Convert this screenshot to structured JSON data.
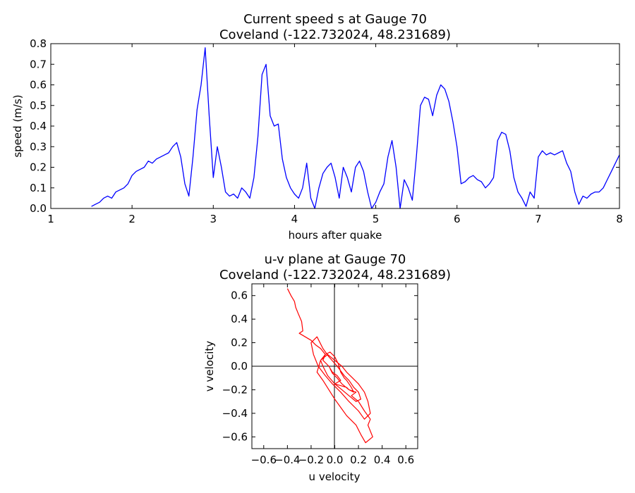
{
  "chart_data": [
    {
      "type": "line",
      "title": "Current speed s at Gauge 70",
      "subtitle": "Coveland  (-122.732024, 48.231689)",
      "xlabel": "hours after quake",
      "ylabel": "speed (m/s)",
      "xlim": [
        1,
        8
      ],
      "ylim": [
        0.0,
        0.8
      ],
      "xticks": [
        "1",
        "2",
        "3",
        "4",
        "5",
        "6",
        "7",
        "8"
      ],
      "yticks": [
        "0.0",
        "0.1",
        "0.2",
        "0.3",
        "0.4",
        "0.5",
        "0.6",
        "0.7",
        "0.8"
      ],
      "grid": false,
      "color": "#0000ff",
      "series": [
        {
          "x": [
            1.5,
            1.55,
            1.6,
            1.65,
            1.7,
            1.75,
            1.8,
            1.85,
            1.9,
            1.95,
            2.0,
            2.05,
            2.1,
            2.15,
            2.2,
            2.25,
            2.3,
            2.35,
            2.4,
            2.45,
            2.5,
            2.55,
            2.6,
            2.65,
            2.7,
            2.75,
            2.8,
            2.85,
            2.9,
            2.95,
            3.0,
            3.05,
            3.1,
            3.15,
            3.2,
            3.25,
            3.3,
            3.35,
            3.4,
            3.45,
            3.5,
            3.55,
            3.6,
            3.65,
            3.7,
            3.75,
            3.8,
            3.85,
            3.9,
            3.95,
            4.0,
            4.05,
            4.1,
            4.15,
            4.2,
            4.25,
            4.3,
            4.35,
            4.4,
            4.45,
            4.5,
            4.55,
            4.6,
            4.65,
            4.7,
            4.75,
            4.8,
            4.85,
            4.9,
            4.95,
            5.0,
            5.05,
            5.1,
            5.15,
            5.2,
            5.25,
            5.3,
            5.35,
            5.4,
            5.45,
            5.5,
            5.55,
            5.6,
            5.65,
            5.7,
            5.75,
            5.8,
            5.85,
            5.9,
            5.95,
            6.0,
            6.05,
            6.1,
            6.15,
            6.2,
            6.25,
            6.3,
            6.35,
            6.4,
            6.45,
            6.5,
            6.55,
            6.6,
            6.65,
            6.7,
            6.75,
            6.8,
            6.85,
            6.9,
            6.95,
            7.0,
            7.05,
            7.1,
            7.15,
            7.2,
            7.25,
            7.3,
            7.35,
            7.4,
            7.45,
            7.5,
            7.55,
            7.6,
            7.65,
            7.7,
            7.75,
            7.8,
            7.85,
            7.9,
            7.95,
            8.0
          ],
          "values": [
            0.01,
            0.02,
            0.03,
            0.05,
            0.06,
            0.05,
            0.08,
            0.09,
            0.1,
            0.12,
            0.16,
            0.18,
            0.19,
            0.2,
            0.23,
            0.22,
            0.24,
            0.25,
            0.26,
            0.27,
            0.3,
            0.32,
            0.25,
            0.12,
            0.06,
            0.25,
            0.48,
            0.6,
            0.78,
            0.45,
            0.15,
            0.3,
            0.2,
            0.08,
            0.06,
            0.07,
            0.05,
            0.1,
            0.08,
            0.05,
            0.15,
            0.35,
            0.65,
            0.7,
            0.45,
            0.4,
            0.41,
            0.24,
            0.15,
            0.1,
            0.07,
            0.05,
            0.1,
            0.22,
            0.05,
            0.0,
            0.1,
            0.17,
            0.2,
            0.22,
            0.15,
            0.05,
            0.2,
            0.15,
            0.08,
            0.2,
            0.23,
            0.18,
            0.08,
            0.0,
            0.03,
            0.08,
            0.12,
            0.25,
            0.33,
            0.2,
            0.0,
            0.14,
            0.1,
            0.04,
            0.25,
            0.5,
            0.54,
            0.53,
            0.45,
            0.55,
            0.6,
            0.58,
            0.52,
            0.42,
            0.3,
            0.12,
            0.13,
            0.15,
            0.16,
            0.14,
            0.13,
            0.1,
            0.12,
            0.15,
            0.33,
            0.37,
            0.36,
            0.28,
            0.15,
            0.08,
            0.05,
            0.01,
            0.08,
            0.05,
            0.25,
            0.28,
            0.26,
            0.27,
            0.26,
            0.27,
            0.28,
            0.22,
            0.18,
            0.08,
            0.02,
            0.06,
            0.05,
            0.07,
            0.08,
            0.08,
            0.1,
            0.14,
            0.18,
            0.22,
            0.26
          ]
        }
      ]
    },
    {
      "type": "line",
      "title": "u-v plane at Gauge 70",
      "subtitle": "Coveland  (-122.732024, 48.231689)",
      "xlabel": "u velocity",
      "ylabel": "v velocity",
      "xlim": [
        -0.7,
        0.7
      ],
      "ylim": [
        -0.7,
        0.7
      ],
      "xticks": [
        "−0.6",
        "−0.4",
        "−0.2",
        "0.0",
        "0.2",
        "0.4",
        "0.6"
      ],
      "yticks": [
        "−0.6",
        "−0.4",
        "−0.2",
        "0.0",
        "0.2",
        "0.4",
        "0.6"
      ],
      "grid": false,
      "color": "#ff0000",
      "series": [
        {
          "u": [
            -0.4,
            -0.37,
            -0.34,
            -0.33,
            -0.31,
            -0.28,
            -0.27,
            -0.3,
            -0.25,
            -0.2,
            -0.16,
            -0.12,
            -0.08,
            -0.1,
            -0.05,
            -0.02,
            0.02,
            0.05,
            0.0,
            0.1,
            0.12,
            0.18,
            0.14,
            0.2,
            0.25,
            0.3,
            0.28,
            0.32,
            0.26,
            0.22,
            0.18,
            0.1,
            0.05,
            0.0,
            -0.05,
            -0.1,
            -0.15,
            -0.12,
            -0.06,
            0.0,
            0.06,
            0.1,
            0.15,
            0.2,
            0.25,
            0.28,
            0.3,
            0.25,
            0.2,
            0.12,
            0.05,
            -0.02,
            -0.08,
            -0.14,
            -0.18,
            -0.2,
            -0.15,
            -0.1,
            -0.05,
            0.02,
            0.08,
            0.12,
            0.16,
            0.2,
            0.22,
            0.18,
            0.12,
            0.06,
            0.0,
            -0.06,
            -0.1,
            -0.12,
            -0.08,
            -0.04,
            0.0,
            0.03,
            0.05,
            0.08,
            0.1,
            0.14,
            0.16,
            0.12,
            0.06,
            0.02,
            -0.02,
            -0.04
          ],
          "v": [
            0.66,
            0.6,
            0.55,
            0.5,
            0.45,
            0.38,
            0.3,
            0.28,
            0.25,
            0.22,
            0.18,
            0.15,
            0.1,
            0.05,
            0.0,
            -0.05,
            -0.08,
            -0.12,
            -0.15,
            -0.18,
            -0.2,
            -0.22,
            -0.25,
            -0.3,
            -0.38,
            -0.45,
            -0.5,
            -0.6,
            -0.65,
            -0.58,
            -0.5,
            -0.42,
            -0.35,
            -0.28,
            -0.2,
            -0.12,
            -0.05,
            0.05,
            0.1,
            0.05,
            0.0,
            -0.05,
            -0.1,
            -0.15,
            -0.22,
            -0.3,
            -0.4,
            -0.45,
            -0.38,
            -0.3,
            -0.22,
            -0.15,
            -0.08,
            0.0,
            0.1,
            0.2,
            0.25,
            0.15,
            0.08,
            0.0,
            -0.08,
            -0.12,
            -0.18,
            -0.22,
            -0.28,
            -0.3,
            -0.25,
            -0.2,
            -0.15,
            -0.08,
            0.0,
            0.05,
            0.1,
            0.12,
            0.08,
            0.02,
            -0.05,
            -0.1,
            -0.12,
            -0.18,
            -0.22,
            -0.2,
            -0.15,
            -0.1,
            -0.06,
            -0.02
          ]
        }
      ]
    }
  ]
}
